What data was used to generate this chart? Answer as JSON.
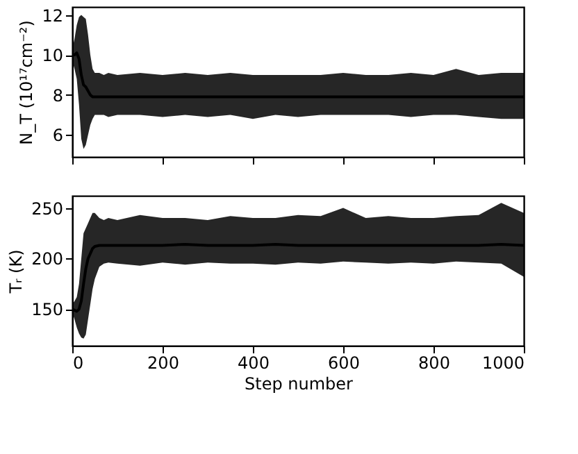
{
  "chart_data": [
    {
      "type": "line",
      "ylabel": "N_T (10¹⁷cm⁻²)",
      "tick_labels": "y",
      "grid": false,
      "xlim": [
        0,
        1000
      ],
      "xticks": [
        0,
        200,
        400,
        600,
        800,
        1000
      ],
      "ylim": [
        4.9,
        12.4
      ],
      "yticks": [
        6,
        8,
        10,
        12
      ],
      "x": [
        0,
        5,
        10,
        15,
        20,
        25,
        30,
        35,
        40,
        45,
        50,
        60,
        70,
        80,
        100,
        150,
        200,
        250,
        300,
        350,
        400,
        450,
        500,
        550,
        600,
        650,
        700,
        750,
        800,
        850,
        900,
        950,
        1000
      ],
      "series": [
        {
          "color": "#000000",
          "values": [
            10.0,
            10.0,
            10.1,
            9.8,
            9.0,
            8.5,
            8.4,
            8.2,
            8.0,
            7.9,
            7.9,
            7.9,
            7.9,
            7.9,
            7.9,
            7.9,
            7.9,
            7.9,
            7.9,
            7.9,
            7.9,
            7.9,
            7.9,
            7.9,
            7.9,
            7.9,
            7.9,
            7.9,
            7.9,
            7.9,
            7.9,
            7.9,
            7.9
          ],
          "lower": [
            9.7,
            9.3,
            8.8,
            7.5,
            5.8,
            5.3,
            5.5,
            6.0,
            6.5,
            6.8,
            7.0,
            7.0,
            7.0,
            6.9,
            7.0,
            7.0,
            6.9,
            7.0,
            6.9,
            7.0,
            6.8,
            7.0,
            6.9,
            7.0,
            7.0,
            7.0,
            7.0,
            6.9,
            7.0,
            7.0,
            6.9,
            6.8,
            6.8
          ],
          "upper": [
            10.3,
            10.8,
            11.5,
            11.9,
            12.0,
            11.9,
            11.8,
            11.0,
            10.0,
            9.3,
            9.1,
            9.1,
            9.0,
            9.1,
            9.0,
            9.1,
            9.0,
            9.1,
            9.0,
            9.1,
            9.0,
            9.0,
            9.0,
            9.0,
            9.1,
            9.0,
            9.0,
            9.1,
            9.0,
            9.3,
            9.0,
            9.1,
            9.1
          ]
        }
      ]
    },
    {
      "type": "line",
      "ylabel": "Tᵣ (K)",
      "xlabel": "Step number",
      "grid": false,
      "xlim": [
        0,
        1000
      ],
      "xticks": [
        0,
        200,
        400,
        600,
        800,
        1000
      ],
      "ylim": [
        114,
        262
      ],
      "yticks": [
        150,
        200,
        250
      ],
      "x": [
        0,
        5,
        10,
        15,
        20,
        25,
        30,
        35,
        40,
        45,
        50,
        60,
        70,
        80,
        100,
        150,
        200,
        250,
        300,
        350,
        400,
        450,
        500,
        550,
        600,
        650,
        700,
        750,
        800,
        850,
        900,
        950,
        1000
      ],
      "series": [
        {
          "color": "#000000",
          "values": [
            150,
            149,
            148,
            150,
            158,
            175,
            190,
            200,
            205,
            210,
            212,
            213,
            213,
            213,
            213,
            213,
            213,
            214,
            213,
            213,
            213,
            214,
            213,
            213,
            213,
            213,
            213,
            213,
            213,
            213,
            213,
            214,
            213
          ],
          "lower": [
            147,
            140,
            132,
            126,
            122,
            121,
            125,
            140,
            155,
            170,
            180,
            192,
            195,
            196,
            195,
            193,
            196,
            194,
            196,
            195,
            195,
            194,
            196,
            195,
            197,
            196,
            195,
            196,
            195,
            197,
            196,
            195,
            182
          ],
          "upper": [
            155,
            158,
            162,
            175,
            200,
            225,
            230,
            235,
            240,
            245,
            245,
            240,
            238,
            240,
            238,
            243,
            240,
            240,
            238,
            242,
            240,
            240,
            243,
            242,
            250,
            240,
            242,
            240,
            240,
            242,
            243,
            255,
            245
          ]
        }
      ]
    }
  ]
}
